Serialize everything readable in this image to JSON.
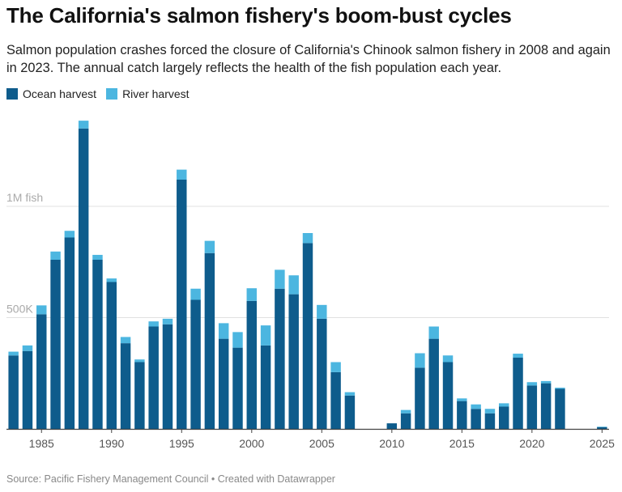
{
  "title": "The California's salmon fishery's boom-bust cycles",
  "subtitle": "Salmon population crashes forced the closure of California's Chinook salmon fishery in 2008 and again in 2023. The annual catch largely reflects the health of the fish population each year.",
  "footer": "Source: Pacific Fishery Management Council • Created with Datawrapper",
  "colors": {
    "ocean": "#0e5c8c",
    "river": "#4cb6e0",
    "grid": "#e0e0e0",
    "axis": "#444444",
    "tick_text": "#555555",
    "y_label_text": "#aaaaaa"
  },
  "chart_data": {
    "type": "bar",
    "stacked": true,
    "x": [
      1983,
      1984,
      1985,
      1986,
      1987,
      1988,
      1989,
      1990,
      1991,
      1992,
      1993,
      1994,
      1995,
      1996,
      1997,
      1998,
      1999,
      2000,
      2001,
      2002,
      2003,
      2004,
      2005,
      2006,
      2007,
      2008,
      2009,
      2010,
      2011,
      2012,
      2013,
      2014,
      2015,
      2016,
      2017,
      2018,
      2019,
      2020,
      2021,
      2022,
      2023,
      2024,
      2025
    ],
    "series": [
      {
        "name": "Ocean harvest",
        "values": [
          330000,
          350000,
          515000,
          760000,
          860000,
          1350000,
          760000,
          660000,
          385000,
          300000,
          460000,
          470000,
          1120000,
          580000,
          790000,
          405000,
          365000,
          575000,
          375000,
          630000,
          605000,
          835000,
          495000,
          255000,
          150000,
          0,
          0,
          25000,
          70000,
          275000,
          405000,
          300000,
          125000,
          90000,
          70000,
          100000,
          320000,
          195000,
          205000,
          180000,
          0,
          0,
          8000
        ]
      },
      {
        "name": "River harvest",
        "values": [
          17000,
          25000,
          40000,
          37000,
          30000,
          35000,
          22000,
          16000,
          28000,
          12000,
          23000,
          25000,
          45000,
          50000,
          55000,
          70000,
          70000,
          57000,
          90000,
          85000,
          85000,
          45000,
          62000,
          45000,
          15000,
          0,
          0,
          0,
          15000,
          65000,
          55000,
          30000,
          12000,
          20000,
          20000,
          15000,
          18000,
          15000,
          10000,
          5000,
          0,
          0,
          2000
        ]
      }
    ],
    "xticks": [
      1985,
      1990,
      1995,
      2000,
      2005,
      2010,
      2015,
      2020,
      2025
    ],
    "ylabels": [
      {
        "value": 500000,
        "label": "500K"
      },
      {
        "value": 1000000,
        "label": "1M fish"
      }
    ],
    "ylim": [
      0,
      1400000
    ],
    "legend": "top-left",
    "grid": true
  }
}
